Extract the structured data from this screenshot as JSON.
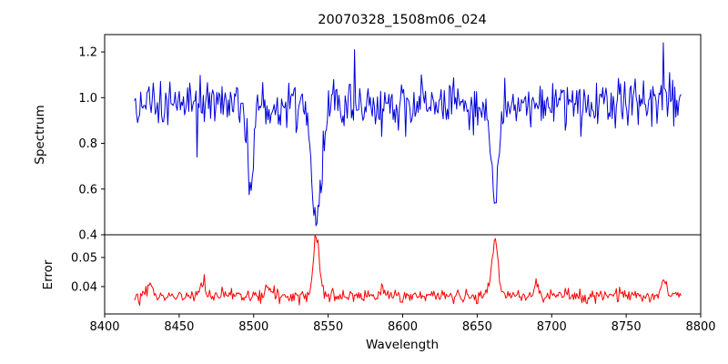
{
  "figure": {
    "title": "20070328_1508m06_024",
    "xlabel": "Wavelength",
    "background_color": "#ffffff"
  },
  "chart_data": [
    {
      "type": "line",
      "name": "spectrum",
      "ylabel": "Spectrum",
      "color": "#0000dd",
      "xlim": [
        8400,
        8800
      ],
      "ylim": [
        0.4,
        1.276
      ],
      "yticks": [
        1.2,
        1.0,
        0.8,
        0.6,
        0.4
      ],
      "yticklabels": [
        "1.2",
        "1.0",
        "0.8",
        "0.6",
        "0.4"
      ],
      "x_start": 8420,
      "x_end": 8787,
      "x_step": 0.7,
      "continuum_level": 0.97,
      "noise_sigma": 0.05,
      "absorption_lines": [
        {
          "center": 8498,
          "depth": 0.34,
          "sigma": 2.2
        },
        {
          "center": 8542,
          "depth": 0.53,
          "sigma": 3.2
        },
        {
          "center": 8662,
          "depth": 0.43,
          "sigma": 2.6
        }
      ],
      "feature_points": [
        {
          "x": 8462,
          "value": 0.74
        },
        {
          "x": 8498,
          "value": 0.63
        },
        {
          "x": 8542,
          "value": 0.44
        },
        {
          "x": 8568,
          "value": 1.21
        },
        {
          "x": 8662,
          "value": 0.54
        },
        {
          "x": 8775,
          "value": 1.24
        }
      ]
    },
    {
      "type": "line",
      "name": "error",
      "ylabel": "Error",
      "color": "#ff0000",
      "xlim": [
        8400,
        8800
      ],
      "ylim": [
        0.0306,
        0.0578
      ],
      "yticks": [
        0.05,
        0.04
      ],
      "yticklabels": [
        "0.05",
        "0.04"
      ],
      "xticks": [
        8400,
        8450,
        8500,
        8550,
        8600,
        8650,
        8700,
        8750,
        8800
      ],
      "xticklabels": [
        "8400",
        "8450",
        "8500",
        "8550",
        "8600",
        "8650",
        "8700",
        "8750",
        "8800"
      ],
      "x_start": 8420,
      "x_end": 8787,
      "x_step": 0.7,
      "baseline": 0.0368,
      "noise_sigma": 0.0012,
      "peaks": [
        {
          "center": 8430,
          "height": 0.004,
          "sigma": 1.5
        },
        {
          "center": 8466,
          "height": 0.005,
          "sigma": 1.6
        },
        {
          "center": 8510,
          "height": 0.004,
          "sigma": 1.5
        },
        {
          "center": 8542,
          "height": 0.0205,
          "sigma": 2.0
        },
        {
          "center": 8586,
          "height": 0.003,
          "sigma": 1.5
        },
        {
          "center": 8662,
          "height": 0.0195,
          "sigma": 2.0
        },
        {
          "center": 8690,
          "height": 0.003,
          "sigma": 1.5
        },
        {
          "center": 8775,
          "height": 0.005,
          "sigma": 1.8
        }
      ],
      "feature_points": [
        {
          "x": 8542,
          "value": 0.057
        },
        {
          "x": 8662,
          "value": 0.0565
        }
      ]
    }
  ]
}
